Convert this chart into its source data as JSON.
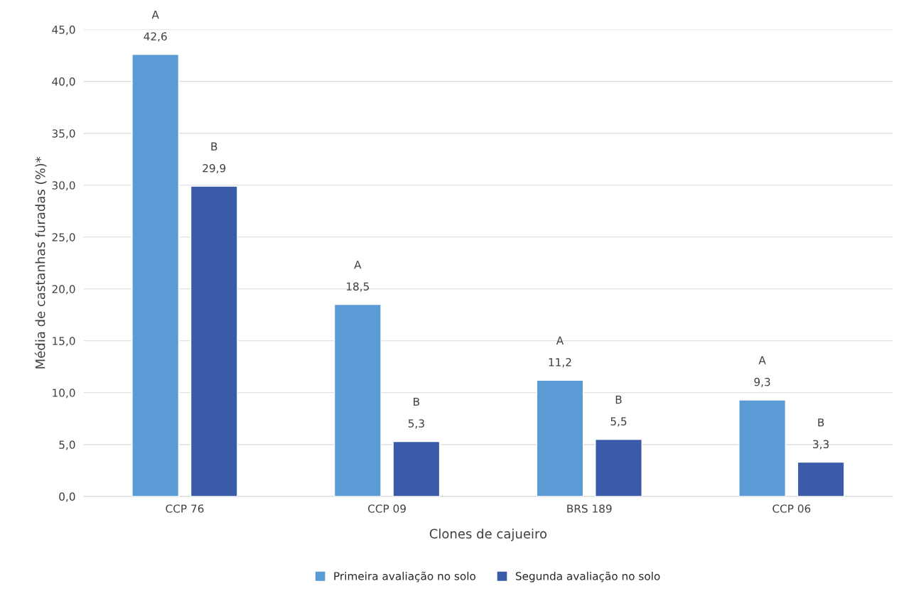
{
  "chart_data": {
    "type": "bar",
    "xlabel": "Clones de cajueiro",
    "ylabel": "Média de castanhas furadas (%)*",
    "categories": [
      "CCP 76",
      "CCP 09",
      "BRS 189",
      "CCP 06"
    ],
    "series": [
      {
        "name": "Primeira avaliação no solo",
        "color": "#5b9bd5",
        "values": [
          42.6,
          18.5,
          11.2,
          9.3
        ],
        "value_labels": [
          "42,6",
          "18,5",
          "11,2",
          "9,3"
        ]
      },
      {
        "name": "Segunda avaliação no solo",
        "color": "#3a5ca8",
        "values": [
          29.9,
          5.3,
          5.5,
          3.3
        ],
        "value_labels": [
          "29,9",
          "5,3",
          "5,5",
          "3,3"
        ]
      }
    ],
    "annotations": [
      "A",
      "B",
      "A",
      "B",
      "A",
      "B",
      "A",
      "B"
    ],
    "ylim": [
      0,
      45
    ],
    "yticks": [
      {
        "value": 0,
        "label": "0,0"
      },
      {
        "value": 5,
        "label": "5,0"
      },
      {
        "value": 10,
        "label": "10,0"
      },
      {
        "value": 15,
        "label": "15,0"
      },
      {
        "value": 20,
        "label": "20,0"
      },
      {
        "value": 25,
        "label": "25,0"
      },
      {
        "value": 30,
        "label": "30,0"
      },
      {
        "value": 35,
        "label": "35,0"
      },
      {
        "value": 40,
        "label": "40,0"
      },
      {
        "value": 45,
        "label": "45,0"
      }
    ],
    "grid": "y",
    "legend": "bottom"
  }
}
